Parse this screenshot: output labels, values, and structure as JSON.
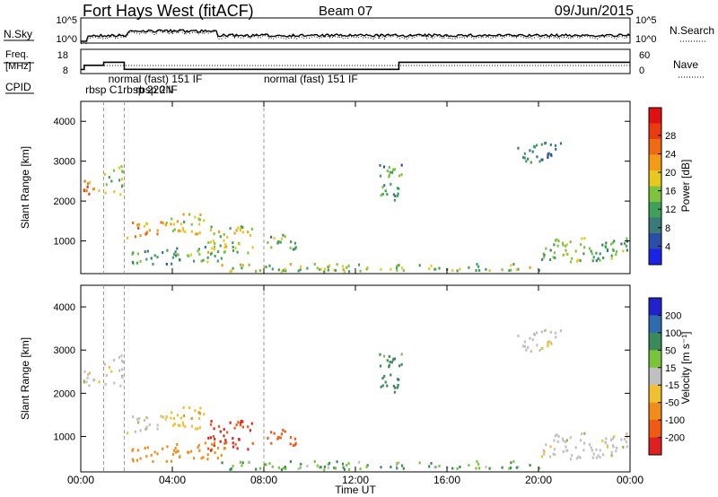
{
  "header": {
    "radar": "Fort Hays West (fitACF)",
    "beam": "Beam 07",
    "date": "09/Jun/2015"
  },
  "panels_small": {
    "nsky": {
      "label": "N.Sky",
      "ticks": [
        "10^5",
        "10^0"
      ]
    },
    "nsearch": {
      "label": "N.Search",
      "ticks": [
        "10^5",
        "10^0"
      ]
    },
    "freq": {
      "label_top": "Freq.",
      "label_bottom": "[MHz]",
      "ticks": [
        "18",
        "8"
      ]
    },
    "nave": {
      "label": "Nave",
      "ticks": [
        "60",
        "0"
      ]
    },
    "cpid": {
      "label": "CPID"
    }
  },
  "cpid_labels": [
    {
      "text": "rbsp C1",
      "t": 0.2
    },
    {
      "text": "normal (fast) 151 IF",
      "t": 1.2
    },
    {
      "text": "rbsp 220 IF",
      "t": 1.85
    },
    {
      "text": "rbsp 2N",
      "t": 2.4
    },
    {
      "text": "normal (fast) 151 IF",
      "t": 8.0
    }
  ],
  "axes": {
    "xlabel": "Time UT",
    "xticks": [
      "00:00",
      "04:00",
      "08:00",
      "12:00",
      "16:00",
      "20:00",
      "00:00"
    ],
    "ylabel": "Slant Range [km]",
    "yticks": [
      "1000",
      "2000",
      "3000",
      "4000"
    ],
    "xlim": [
      0,
      24
    ],
    "ylim": [
      180,
      4500
    ]
  },
  "power_scale": {
    "label": "Power [dB]",
    "ticks": [
      "4",
      "8",
      "12",
      "16",
      "20",
      "24",
      "28"
    ],
    "colors": [
      "#1a22e8",
      "#2b4fa8",
      "#3a7a78",
      "#3fa05a",
      "#7dc43c",
      "#e8c81e",
      "#f39a16",
      "#f06a12",
      "#ea3a10",
      "#e01010"
    ]
  },
  "velocity_scale": {
    "label": "Velocity [m s⁻¹]",
    "ticks": [
      "200",
      "100",
      "50",
      "15",
      "-15",
      "-50",
      "-100",
      "-200"
    ],
    "colors": [
      "#2222cc",
      "#2e6bb0",
      "#3a8a5a",
      "#78c43a",
      "#c0c0c0",
      "#f0c030",
      "#f08c18",
      "#f05a12",
      "#e02020"
    ]
  },
  "chart_data": {
    "type": "heatmap",
    "title": "Fort Hays West (fitACF)",
    "xlabel": "Time UT",
    "ylabel": "Slant Range [km]",
    "xlim": [
      0,
      24
    ],
    "ylim": [
      180,
      4500
    ],
    "echo_regions": [
      {
        "t0": 0.1,
        "t1": 0.9,
        "r0": 2100,
        "r1": 2600,
        "power": 22,
        "velocity": 0
      },
      {
        "t0": 1.0,
        "t1": 1.8,
        "r0": 2200,
        "r1": 2900,
        "power": 14,
        "velocity": 0
      },
      {
        "t0": 2.0,
        "t1": 3.5,
        "r0": 1100,
        "r1": 1500,
        "power": 20,
        "velocity": 0
      },
      {
        "t0": 3.5,
        "t1": 5.5,
        "r0": 1200,
        "r1": 1700,
        "power": 16,
        "velocity": -40
      },
      {
        "t0": 2.0,
        "t1": 4.2,
        "r0": 450,
        "r1": 800,
        "power": 10,
        "velocity": -70
      },
      {
        "t0": 4.0,
        "t1": 6.3,
        "r0": 500,
        "r1": 900,
        "power": 12,
        "velocity": -70
      },
      {
        "t0": 5.5,
        "t1": 7.5,
        "r0": 700,
        "r1": 1400,
        "power": 14,
        "velocity": -160
      },
      {
        "t0": 8.0,
        "t1": 9.5,
        "r0": 800,
        "r1": 1200,
        "power": 12,
        "velocity": -120
      },
      {
        "t0": 13.0,
        "t1": 14.0,
        "r0": 2000,
        "r1": 3000,
        "power": 10,
        "velocity": 45
      },
      {
        "t0": 19.0,
        "t1": 21.0,
        "r0": 3000,
        "r1": 3500,
        "power": 8,
        "velocity": 0
      },
      {
        "t0": 20.0,
        "t1": 24.0,
        "r0": 500,
        "r1": 1100,
        "power": 12,
        "velocity": 0
      },
      {
        "t0": 6.0,
        "t1": 20.0,
        "r0": 250,
        "r1": 450,
        "power": 14,
        "velocity": 30
      }
    ]
  }
}
